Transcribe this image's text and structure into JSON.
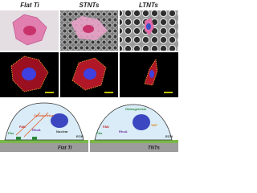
{
  "columns": [
    "Flat Ti",
    "STNTs",
    "LTNTs"
  ],
  "diagram": {
    "left": {
      "cytoskeleton": "Cytoskeleton",
      "fak": "FAK",
      "fas": "FAs",
      "rhoa": "RhoA",
      "nuclear": "Nuclear",
      "ecm": "ECM",
      "substrate": "Flat Ti"
    },
    "right": {
      "osteogenesis": "Osteogenesis",
      "fak": "FAK",
      "fas": "FAs",
      "rhoa": "RhoA",
      "yap": "YAP",
      "ecm": "ECM",
      "substrate": "TNTs"
    }
  }
}
